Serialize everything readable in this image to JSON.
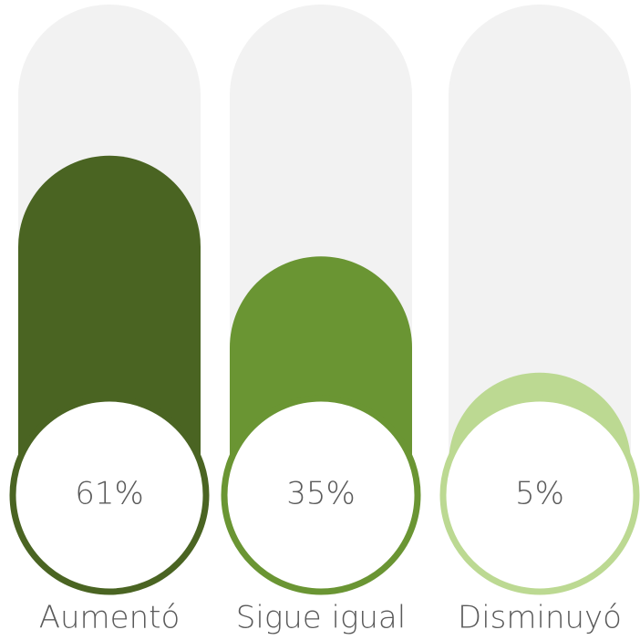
{
  "chart_data": {
    "type": "bar",
    "categories": [
      "Aumentó",
      "Sigue igual",
      "Disminuyó"
    ],
    "values": [
      61,
      35,
      5
    ],
    "value_labels": [
      "61%",
      "35%",
      "5%"
    ],
    "colors": [
      "#4a6422",
      "#6a9533",
      "#bcd992"
    ],
    "ylim": [
      0,
      100
    ]
  }
}
